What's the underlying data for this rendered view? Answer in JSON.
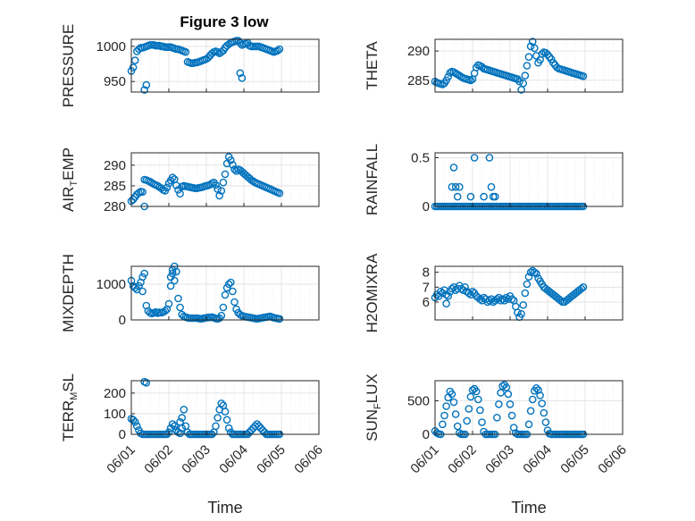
{
  "figure_title": "Figure 3 low",
  "x_tick_labels": [
    "06/01",
    "06/02",
    "06/03",
    "06/04",
    "06/05",
    "06/06"
  ],
  "x_label": "Time",
  "colors": {
    "marker": "#0072bd",
    "axis": "#262626",
    "grid": "#dedede"
  },
  "chart_data": [
    {
      "type": "scatter",
      "ylabel": "PRESSURE",
      "ylim": [
        935,
        1010
      ],
      "yticks": [
        950,
        1000
      ],
      "grid": true,
      "marker": "circle",
      "x": [
        0.0,
        0.05,
        0.1,
        0.15,
        0.2,
        0.25,
        0.3,
        0.35,
        0.4,
        0.45,
        0.5,
        0.55,
        0.6,
        0.65,
        0.7,
        0.75,
        0.8,
        0.85,
        0.9,
        0.95,
        1.0,
        1.05,
        1.1,
        1.15,
        1.2,
        1.25,
        1.3,
        1.35,
        1.4,
        1.45,
        1.5,
        1.55,
        1.6,
        1.65,
        1.7,
        1.75,
        1.8,
        1.85,
        1.9,
        1.95,
        2.0,
        2.05,
        2.1,
        2.15,
        2.2,
        2.25,
        2.3,
        2.35,
        2.4,
        2.45,
        2.5,
        2.55,
        2.6,
        2.65,
        2.7,
        2.75,
        2.8,
        2.85,
        2.9,
        2.95,
        3.0,
        3.05,
        3.1,
        3.15,
        3.2,
        3.25,
        3.3,
        3.35,
        3.4,
        3.45,
        3.5,
        3.55,
        3.6,
        3.65,
        3.7,
        3.75,
        3.8,
        3.85,
        3.9,
        3.95,
        0.35,
        0.4,
        2.95,
        2.9
      ],
      "y": [
        965,
        970,
        980,
        993,
        996,
        998,
        998,
        999,
        1000,
        1001,
        1002,
        1002,
        1002,
        1001,
        1001,
        1001,
        1000,
        1000,
        999,
        999,
        999,
        999,
        998,
        997,
        996,
        996,
        995,
        994,
        993,
        992,
        978,
        977,
        976,
        976,
        977,
        977,
        978,
        979,
        980,
        981,
        982,
        984,
        987,
        990,
        992,
        993,
        992,
        990,
        992,
        994,
        998,
        1001,
        1003,
        1005,
        1006,
        1007,
        1008,
        1008,
        1005,
        1002,
        1003,
        1004,
        1005,
        1001,
        1000,
        1000,
        1000,
        1000,
        1000,
        999,
        998,
        997,
        996,
        995,
        994,
        993,
        992,
        993,
        994,
        996,
        938,
        945,
        955,
        962
      ]
    },
    {
      "type": "scatter",
      "ylabel": "THETA",
      "ylim": [
        283,
        292
      ],
      "yticks": [
        285,
        290
      ],
      "grid": true,
      "marker": "circle",
      "x": [
        0.0,
        0.05,
        0.1,
        0.15,
        0.2,
        0.25,
        0.3,
        0.35,
        0.4,
        0.45,
        0.5,
        0.55,
        0.6,
        0.65,
        0.7,
        0.75,
        0.8,
        0.85,
        0.9,
        0.95,
        1.0,
        1.05,
        1.1,
        1.15,
        1.2,
        1.25,
        1.3,
        1.35,
        1.4,
        1.45,
        1.5,
        1.55,
        1.6,
        1.65,
        1.7,
        1.75,
        1.8,
        1.85,
        1.9,
        1.95,
        2.0,
        2.05,
        2.1,
        2.15,
        2.2,
        2.25,
        2.3,
        2.35,
        2.4,
        2.45,
        2.5,
        2.55,
        2.6,
        2.65,
        2.7,
        2.75,
        2.8,
        2.85,
        2.9,
        2.95,
        3.0,
        3.05,
        3.1,
        3.15,
        3.2,
        3.25,
        3.3,
        3.35,
        3.4,
        3.45,
        3.5,
        3.55,
        3.6,
        3.65,
        3.7,
        3.75,
        3.8,
        3.85,
        3.9,
        3.95
      ],
      "y": [
        284.8,
        284.6,
        284.5,
        284.4,
        284.3,
        284.5,
        285.0,
        285.6,
        286.3,
        286.5,
        286.4,
        286.2,
        286.0,
        285.8,
        285.6,
        285.4,
        285.3,
        285.2,
        285.1,
        285.0,
        285.2,
        286.2,
        287.2,
        287.6,
        287.5,
        287.3,
        287.0,
        286.9,
        286.8,
        286.7,
        286.6,
        286.5,
        286.4,
        286.3,
        286.2,
        286.1,
        286.0,
        285.9,
        285.8,
        285.7,
        285.6,
        285.5,
        285.4,
        285.3,
        285.2,
        284.8,
        283.4,
        284.5,
        285.8,
        287.5,
        289.0,
        290.8,
        291.6,
        290.5,
        289.2,
        288.0,
        288.5,
        289.5,
        289.8,
        289.7,
        289.4,
        289.0,
        288.6,
        288.0,
        287.6,
        287.2,
        287.0,
        286.9,
        286.8,
        286.7,
        286.6,
        286.5,
        286.4,
        286.3,
        286.2,
        286.1,
        286.0,
        285.9,
        285.8,
        285.7
      ]
    },
    {
      "type": "scatter",
      "ylabel": "AIR_TEMP",
      "ylim": [
        280,
        293
      ],
      "yticks": [
        280,
        285,
        290
      ],
      "grid": true,
      "marker": "circle",
      "x": [
        0.0,
        0.05,
        0.1,
        0.15,
        0.2,
        0.25,
        0.3,
        0.35,
        0.4,
        0.45,
        0.5,
        0.55,
        0.6,
        0.65,
        0.7,
        0.75,
        0.8,
        0.85,
        0.9,
        0.95,
        1.0,
        1.05,
        1.1,
        1.15,
        1.2,
        1.25,
        1.3,
        1.35,
        1.4,
        1.45,
        1.5,
        1.55,
        1.6,
        1.65,
        1.7,
        1.75,
        1.8,
        1.85,
        1.9,
        1.95,
        2.0,
        2.05,
        2.1,
        2.15,
        2.2,
        2.25,
        2.3,
        2.35,
        2.4,
        2.45,
        2.5,
        2.55,
        2.6,
        2.65,
        2.7,
        2.75,
        2.8,
        2.85,
        2.9,
        2.95,
        3.0,
        3.05,
        3.1,
        3.15,
        3.2,
        3.25,
        3.3,
        3.35,
        3.4,
        3.45,
        3.5,
        3.55,
        3.6,
        3.65,
        3.7,
        3.75,
        3.8,
        3.85,
        3.9,
        3.95,
        0.35
      ],
      "y": [
        281.3,
        281.7,
        282.3,
        282.9,
        283.3,
        283.6,
        283.5,
        286.5,
        286.4,
        286.2,
        286.0,
        285.7,
        285.4,
        285.2,
        285.0,
        284.7,
        284.4,
        284.0,
        283.8,
        284.6,
        285.6,
        286.3,
        287.0,
        286.6,
        285.1,
        284.0,
        283.1,
        284.8,
        285.0,
        284.9,
        284.8,
        284.7,
        284.6,
        284.5,
        284.4,
        284.4,
        284.5,
        284.6,
        284.7,
        284.9,
        285.0,
        285.1,
        285.3,
        285.6,
        285.8,
        285.2,
        284.2,
        282.6,
        283.8,
        285.8,
        287.8,
        290.4,
        292.0,
        291.2,
        290.1,
        289.0,
        288.6,
        289.0,
        288.8,
        288.4,
        288.0,
        287.6,
        287.2,
        286.8,
        286.4,
        286.1,
        285.8,
        285.6,
        285.4,
        285.2,
        285.0,
        284.8,
        284.6,
        284.4,
        284.2,
        284.0,
        283.8,
        283.6,
        283.4,
        283.2,
        280.0
      ]
    },
    {
      "type": "scatter",
      "ylabel": "RAINFALL",
      "ylim": [
        0,
        0.55
      ],
      "yticks": [
        0,
        0.5
      ],
      "grid": true,
      "marker": "circle",
      "x": [
        0.0,
        0.05,
        0.1,
        0.15,
        0.2,
        0.25,
        0.3,
        0.35,
        0.4,
        0.45,
        0.5,
        0.55,
        0.6,
        0.65,
        0.7,
        0.75,
        0.8,
        0.85,
        0.9,
        0.95,
        1.0,
        1.05,
        1.1,
        1.15,
        1.2,
        1.25,
        1.3,
        1.35,
        1.4,
        1.45,
        1.5,
        1.55,
        1.6,
        1.65,
        1.7,
        1.75,
        1.8,
        1.85,
        1.9,
        1.95,
        2.0,
        2.05,
        2.1,
        2.15,
        2.2,
        2.25,
        2.3,
        2.35,
        2.4,
        2.45,
        2.5,
        2.55,
        2.6,
        2.65,
        2.7,
        2.75,
        2.8,
        2.85,
        2.9,
        2.95,
        3.0,
        3.05,
        3.1,
        3.15,
        3.2,
        3.25,
        3.3,
        3.35,
        3.4,
        3.45,
        3.5,
        3.55,
        3.6,
        3.65,
        3.7,
        3.75,
        3.8,
        3.85,
        3.9,
        3.95,
        0.45,
        0.5,
        0.55,
        0.6,
        0.65,
        0.95,
        1.05,
        1.3,
        1.45,
        1.5,
        1.55,
        1.6
      ],
      "y": [
        0,
        0,
        0,
        0,
        0,
        0,
        0,
        0,
        0,
        0,
        0,
        0,
        0,
        0,
        0,
        0,
        0,
        0,
        0,
        0,
        0,
        0,
        0,
        0,
        0,
        0,
        0,
        0,
        0,
        0,
        0,
        0,
        0,
        0,
        0,
        0,
        0,
        0,
        0,
        0,
        0,
        0,
        0,
        0,
        0,
        0,
        0,
        0,
        0,
        0,
        0,
        0,
        0,
        0,
        0,
        0,
        0,
        0,
        0,
        0,
        0,
        0,
        0,
        0,
        0,
        0,
        0,
        0,
        0,
        0,
        0,
        0,
        0,
        0,
        0,
        0,
        0,
        0,
        0,
        0,
        0.2,
        0.4,
        0.2,
        0.1,
        0.2,
        0.1,
        0.5,
        0.1,
        0.5,
        0.2,
        0.1,
        0.1
      ]
    },
    {
      "type": "scatter",
      "ylabel": "MIXDEPTH",
      "ylim": [
        0,
        1500
      ],
      "yticks": [
        0,
        1000
      ],
      "grid": true,
      "marker": "circle",
      "x": [
        0.0,
        0.05,
        0.1,
        0.15,
        0.2,
        0.25,
        0.3,
        0.35,
        0.4,
        0.45,
        0.5,
        0.55,
        0.6,
        0.65,
        0.7,
        0.75,
        0.8,
        0.85,
        0.9,
        0.95,
        1.0,
        1.05,
        1.1,
        1.15,
        1.2,
        1.25,
        1.3,
        1.35,
        1.4,
        1.45,
        1.5,
        1.55,
        1.6,
        1.65,
        1.7,
        1.75,
        1.8,
        1.85,
        1.9,
        1.95,
        2.0,
        2.05,
        2.1,
        2.15,
        2.2,
        2.25,
        2.3,
        2.35,
        2.4,
        2.45,
        2.5,
        2.55,
        2.6,
        2.65,
        2.7,
        2.75,
        2.8,
        2.85,
        2.9,
        2.95,
        3.0,
        3.05,
        3.1,
        3.15,
        3.2,
        3.25,
        3.3,
        3.35,
        3.4,
        3.45,
        3.5,
        3.55,
        3.6,
        3.65,
        3.7,
        3.75,
        3.8,
        3.85,
        3.9,
        3.95,
        1.05,
        1.1,
        1.15,
        0.3
      ],
      "y": [
        1100,
        950,
        900,
        850,
        950,
        1050,
        1200,
        1300,
        400,
        250,
        200,
        180,
        200,
        220,
        190,
        210,
        200,
        220,
        250,
        300,
        450,
        950,
        1400,
        1500,
        1350,
        600,
        350,
        150,
        100,
        80,
        60,
        50,
        50,
        50,
        50,
        50,
        40,
        30,
        40,
        50,
        60,
        70,
        70,
        80,
        60,
        40,
        30,
        50,
        120,
        350,
        700,
        900,
        1000,
        1050,
        800,
        500,
        300,
        200,
        150,
        120,
        100,
        90,
        80,
        70,
        60,
        50,
        40,
        30,
        40,
        50,
        60,
        70,
        80,
        90,
        100,
        80,
        60,
        50,
        40,
        30,
        1200,
        1300,
        1100,
        800
      ]
    },
    {
      "type": "scatter",
      "ylabel": "H2OMIXRA",
      "ylim": [
        4.8,
        8.4
      ],
      "yticks": [
        6,
        7,
        8
      ],
      "grid": true,
      "marker": "circle",
      "x": [
        0.0,
        0.05,
        0.1,
        0.15,
        0.2,
        0.25,
        0.3,
        0.35,
        0.4,
        0.45,
        0.5,
        0.55,
        0.6,
        0.65,
        0.7,
        0.75,
        0.8,
        0.85,
        0.9,
        0.95,
        1.0,
        1.05,
        1.1,
        1.15,
        1.2,
        1.25,
        1.3,
        1.35,
        1.4,
        1.45,
        1.5,
        1.55,
        1.6,
        1.65,
        1.7,
        1.75,
        1.8,
        1.85,
        1.9,
        1.95,
        2.0,
        2.05,
        2.1,
        2.15,
        2.2,
        2.25,
        2.3,
        2.35,
        2.4,
        2.45,
        2.5,
        2.55,
        2.6,
        2.65,
        2.7,
        2.75,
        2.8,
        2.85,
        2.9,
        2.95,
        3.0,
        3.05,
        3.1,
        3.15,
        3.2,
        3.25,
        3.3,
        3.35,
        3.4,
        3.45,
        3.5,
        3.55,
        3.6,
        3.65,
        3.7,
        3.75,
        3.8,
        3.85,
        3.9,
        3.95,
        0.3
      ],
      "y": [
        6.3,
        6.5,
        6.4,
        6.7,
        6.6,
        6.8,
        6.5,
        6.4,
        6.7,
        6.9,
        7.0,
        6.8,
        6.9,
        7.1,
        6.9,
        6.8,
        7.0,
        6.7,
        6.6,
        6.5,
        6.7,
        6.6,
        6.4,
        6.3,
        6.2,
        6.1,
        6.3,
        6.2,
        6.0,
        6.1,
        6.2,
        6.0,
        6.1,
        6.2,
        6.3,
        6.1,
        6.2,
        6.1,
        6.3,
        6.2,
        6.4,
        6.2,
        6.1,
        5.7,
        5.3,
        5.0,
        5.2,
        5.8,
        6.6,
        7.2,
        7.7,
        8.0,
        8.1,
        8.0,
        7.9,
        7.6,
        7.4,
        7.2,
        7.0,
        6.9,
        6.8,
        6.7,
        6.6,
        6.5,
        6.4,
        6.3,
        6.2,
        6.1,
        6.0,
        6.0,
        6.1,
        6.2,
        6.3,
        6.4,
        6.5,
        6.6,
        6.7,
        6.8,
        6.9,
        7.0,
        5.9
      ]
    },
    {
      "type": "scatter",
      "ylabel": "TERR_MSL",
      "ylim": [
        0,
        260
      ],
      "yticks": [
        0,
        100,
        200
      ],
      "grid": true,
      "marker": "circle",
      "x": [
        0.0,
        0.05,
        0.1,
        0.15,
        0.2,
        0.25,
        0.3,
        0.35,
        0.4,
        0.45,
        0.5,
        0.55,
        0.6,
        0.65,
        0.7,
        0.75,
        0.8,
        0.85,
        0.9,
        0.95,
        1.0,
        1.05,
        1.1,
        1.15,
        1.2,
        1.25,
        1.3,
        1.35,
        1.4,
        1.45,
        1.5,
        1.55,
        1.6,
        1.65,
        1.7,
        1.75,
        1.8,
        1.85,
        1.9,
        1.95,
        2.0,
        2.05,
        2.1,
        2.15,
        2.2,
        2.25,
        2.3,
        2.35,
        2.4,
        2.45,
        2.5,
        2.55,
        2.6,
        2.65,
        2.7,
        2.75,
        2.8,
        2.85,
        2.9,
        2.95,
        3.0,
        3.05,
        3.1,
        3.15,
        3.2,
        3.25,
        3.3,
        3.35,
        3.4,
        3.45,
        3.5,
        3.55,
        3.6,
        3.65,
        3.7,
        3.75,
        3.8,
        3.85,
        3.9,
        3.95,
        0.35,
        0.4,
        1.35,
        1.3
      ],
      "y": [
        75,
        70,
        60,
        40,
        20,
        5,
        0,
        0,
        0,
        0,
        0,
        0,
        0,
        0,
        0,
        0,
        0,
        0,
        0,
        0,
        10,
        30,
        50,
        40,
        20,
        10,
        5,
        80,
        120,
        40,
        10,
        0,
        0,
        0,
        0,
        0,
        0,
        0,
        0,
        0,
        0,
        0,
        0,
        0,
        10,
        40,
        80,
        120,
        150,
        140,
        110,
        70,
        30,
        10,
        0,
        0,
        0,
        0,
        0,
        0,
        0,
        0,
        0,
        10,
        20,
        30,
        40,
        50,
        40,
        30,
        20,
        10,
        0,
        0,
        0,
        0,
        0,
        0,
        0,
        0,
        255,
        250,
        30,
        60
      ]
    },
    {
      "type": "scatter",
      "ylabel": "SUN_FLUX",
      "ylim": [
        0,
        800
      ],
      "yticks": [
        0,
        500
      ],
      "grid": true,
      "marker": "circle",
      "x": [
        0.0,
        0.05,
        0.1,
        0.15,
        0.2,
        0.25,
        0.3,
        0.35,
        0.4,
        0.45,
        0.5,
        0.55,
        0.6,
        0.65,
        0.7,
        0.75,
        0.8,
        0.85,
        0.9,
        0.95,
        1.0,
        1.05,
        1.1,
        1.15,
        1.2,
        1.25,
        1.3,
        1.35,
        1.4,
        1.45,
        1.5,
        1.55,
        1.6,
        1.65,
        1.7,
        1.75,
        1.8,
        1.85,
        1.9,
        1.95,
        2.0,
        2.05,
        2.1,
        2.15,
        2.2,
        2.25,
        2.3,
        2.35,
        2.4,
        2.45,
        2.5,
        2.55,
        2.6,
        2.65,
        2.7,
        2.75,
        2.8,
        2.85,
        2.9,
        2.95,
        3.0,
        3.05,
        3.1,
        3.15,
        3.2,
        3.25,
        3.3,
        3.35,
        3.4,
        3.45,
        3.5,
        3.55,
        3.6,
        3.65,
        3.7,
        3.75,
        3.8,
        3.85,
        3.9,
        3.95
      ],
      "y": [
        50,
        20,
        5,
        0,
        150,
        280,
        420,
        550,
        640,
        600,
        480,
        300,
        120,
        20,
        0,
        0,
        0,
        200,
        380,
        560,
        660,
        680,
        640,
        520,
        360,
        180,
        40,
        0,
        0,
        0,
        0,
        0,
        0,
        250,
        450,
        620,
        720,
        740,
        700,
        600,
        450,
        280,
        100,
        20,
        0,
        0,
        0,
        0,
        0,
        0,
        150,
        350,
        520,
        650,
        690,
        660,
        580,
        460,
        320,
        180,
        60,
        10,
        0,
        0,
        0,
        0,
        0,
        0,
        0,
        0,
        0,
        0,
        0,
        0,
        0,
        0,
        0,
        0,
        0,
        0
      ]
    }
  ]
}
